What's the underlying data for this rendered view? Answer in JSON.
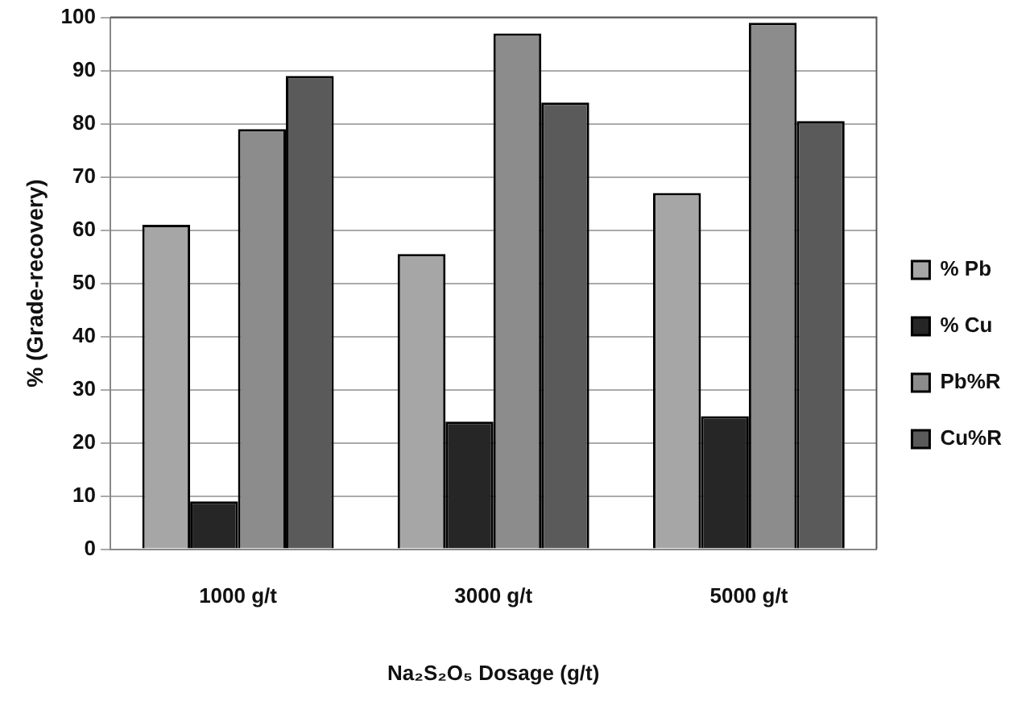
{
  "chart_data": {
    "type": "bar",
    "xlabel": "Na₂S₂O₅ Dosage (g/t)",
    "ylabel": "% (Grade-recovery)",
    "categories": [
      "1000 g/t",
      "3000 g/t",
      "5000 g/t"
    ],
    "series": [
      {
        "name": "% Pb",
        "color": "#a6a6a6",
        "values": [
          61,
          55.5,
          67
        ]
      },
      {
        "name": "% Cu",
        "color": "#262626",
        "values": [
          9,
          24,
          25
        ]
      },
      {
        "name": "Pb%R",
        "color": "#8c8c8c",
        "values": [
          79,
          97,
          99
        ]
      },
      {
        "name": "Cu%R",
        "color": "#5a5a5a",
        "values": [
          89,
          84,
          80.5
        ]
      }
    ],
    "ylim": [
      0,
      100
    ],
    "yticks": [
      0,
      10,
      20,
      30,
      40,
      50,
      60,
      70,
      80,
      90,
      100
    ],
    "grid": "y",
    "legend": "right"
  }
}
